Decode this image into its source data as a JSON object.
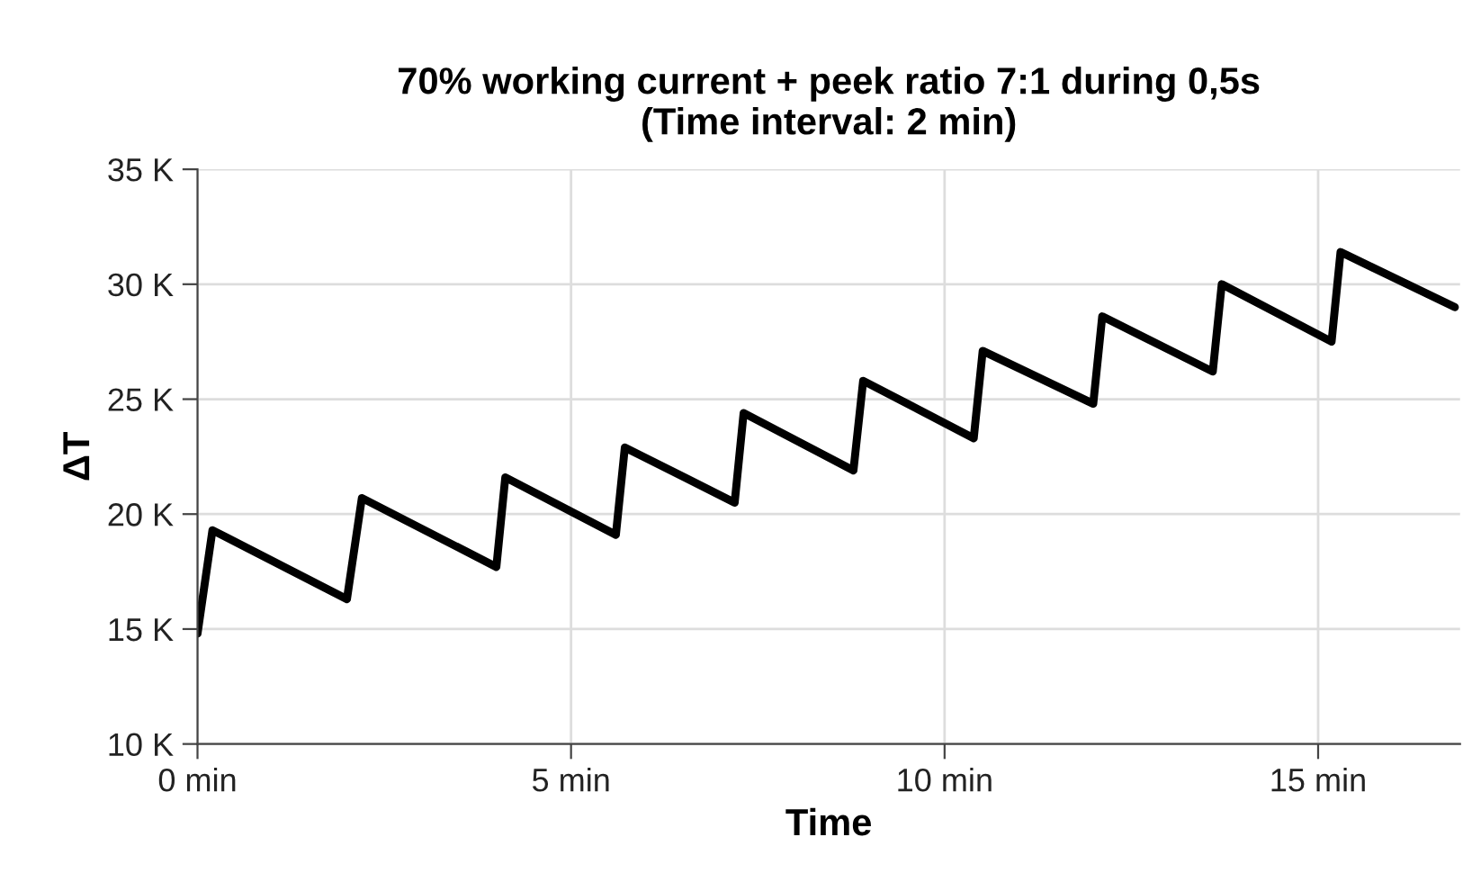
{
  "chart_data": {
    "type": "line",
    "title": "70% working current + peek ratio 7:1 during 0,5s\n(Time interval: 2 min)",
    "xlabel": "Time",
    "ylabel": "ΔT",
    "series": [
      {
        "color": "#000000",
        "x": [
          0,
          0.2,
          2.0,
          2.2,
          4.0,
          4.12,
          5.6,
          5.72,
          7.19,
          7.31,
          8.78,
          8.91,
          10.39,
          10.51,
          11.99,
          12.11,
          13.59,
          13.71,
          15.18,
          15.3,
          16.83
        ],
        "values": [
          14.8,
          19.3,
          16.3,
          20.7,
          17.7,
          21.6,
          19.1,
          22.9,
          20.5,
          24.4,
          21.9,
          25.8,
          23.3,
          27.1,
          24.8,
          28.6,
          26.2,
          30.0,
          27.5,
          31.4,
          29.0
        ]
      }
    ],
    "xlim": [
      0,
      16.9
    ],
    "ylim": [
      10,
      35
    ],
    "xticks": [
      {
        "value": 0,
        "label": "0 min"
      },
      {
        "value": 5,
        "label": "5 min"
      },
      {
        "value": 10,
        "label": "10 min"
      },
      {
        "value": 15,
        "label": "15 min"
      }
    ],
    "yticks": [
      {
        "value": 10,
        "label": "10 K"
      },
      {
        "value": 15,
        "label": "15 K"
      },
      {
        "value": 20,
        "label": "20 K"
      },
      {
        "value": 25,
        "label": "25 K"
      },
      {
        "value": 30,
        "label": "30 K"
      },
      {
        "value": 35,
        "label": "35 K"
      }
    ],
    "grid": true,
    "marker": "none",
    "line_style": "solid"
  }
}
